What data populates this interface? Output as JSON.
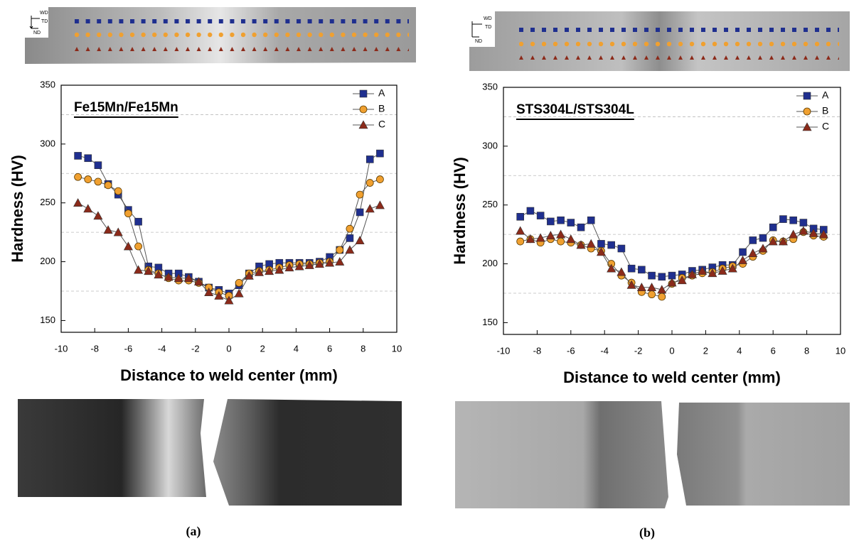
{
  "chart_data": [
    {
      "type": "line",
      "title": "Fe15Mn/Fe15Mn",
      "x_label": "Distance to weld center (mm)",
      "y_label": "Hardness (HV)",
      "x": [
        -9,
        -8.4,
        -7.8,
        -7.2,
        -6.6,
        -6,
        -5.4,
        -4.8,
        -4.2,
        -3.6,
        -3,
        -2.4,
        -1.8,
        -1.2,
        -0.6,
        0,
        0.6,
        1.2,
        1.8,
        2.4,
        3,
        3.6,
        4.2,
        4.8,
        5.4,
        6,
        6.6,
        7.2,
        7.8,
        8.4,
        9
      ],
      "series": [
        {
          "name": "A",
          "color": "#1f2f8f",
          "marker": "square",
          "values": [
            290,
            288,
            282,
            266,
            257,
            244,
            234,
            196,
            195,
            190,
            190,
            187,
            183,
            178,
            176,
            173,
            180,
            190,
            196,
            198,
            199,
            199,
            199,
            199,
            200,
            204,
            210,
            220,
            242,
            287,
            292
          ]
        },
        {
          "name": "B",
          "color": "#f0a030",
          "marker": "circle",
          "values": [
            272,
            270,
            268,
            265,
            260,
            241,
            213,
            193,
            190,
            186,
            184,
            184,
            182,
            178,
            174,
            171,
            182,
            190,
            192,
            193,
            195,
            197,
            198,
            198,
            199,
            200,
            210,
            228,
            257,
            267,
            270
          ]
        },
        {
          "name": "C",
          "color": "#8b2a1a",
          "marker": "triangle",
          "values": [
            250,
            245,
            239,
            227,
            225,
            213,
            193,
            192,
            189,
            187,
            186,
            186,
            183,
            174,
            171,
            167,
            173,
            188,
            191,
            192,
            193,
            195,
            196,
            197,
            198,
            199,
            200,
            210,
            218,
            245,
            248
          ]
        }
      ],
      "xlim": [
        -10,
        10
      ],
      "xticks": [
        -10,
        -8,
        -6,
        -4,
        -2,
        0,
        2,
        4,
        6,
        8,
        10
      ],
      "ylim": [
        140,
        350
      ],
      "yticks": [
        150,
        200,
        250,
        300,
        350
      ],
      "minor_grid": [
        175,
        225,
        275,
        325
      ],
      "legend": "top-right"
    },
    {
      "type": "line",
      "title": "STS304L/STS304L",
      "x_label": "Distance to weld center (mm)",
      "y_label": "Hardness (HV)",
      "x": [
        -9,
        -8.4,
        -7.8,
        -7.2,
        -6.6,
        -6,
        -5.4,
        -4.8,
        -4.2,
        -3.6,
        -3,
        -2.4,
        -1.8,
        -1.2,
        -0.6,
        0,
        0.6,
        1.2,
        1.8,
        2.4,
        3,
        3.6,
        4.2,
        4.8,
        5.4,
        6,
        6.6,
        7.2,
        7.8,
        8.4,
        9
      ],
      "series": [
        {
          "name": "A",
          "color": "#1f2f8f",
          "marker": "square",
          "values": [
            240,
            245,
            241,
            236,
            237,
            235,
            231,
            237,
            217,
            216,
            213,
            196,
            195,
            190,
            189,
            190,
            191,
            194,
            195,
            197,
            199,
            199,
            210,
            220,
            222,
            231,
            238,
            237,
            235,
            230,
            229
          ]
        },
        {
          "name": "B",
          "color": "#f0a030",
          "marker": "circle",
          "values": [
            219,
            221,
            218,
            221,
            219,
            218,
            216,
            213,
            211,
            200,
            190,
            184,
            176,
            174,
            172,
            183,
            188,
            190,
            192,
            193,
            196,
            198,
            200,
            206,
            211,
            220,
            219,
            221,
            227,
            224,
            223
          ]
        },
        {
          "name": "C",
          "color": "#8b2a1a",
          "marker": "triangle",
          "values": [
            228,
            221,
            222,
            224,
            225,
            221,
            216,
            217,
            210,
            196,
            193,
            182,
            180,
            180,
            178,
            184,
            186,
            191,
            194,
            192,
            194,
            196,
            203,
            209,
            213,
            219,
            219,
            225,
            228,
            226,
            225
          ]
        }
      ],
      "xlim": [
        -10,
        10
      ],
      "xticks": [
        -10,
        -8,
        -6,
        -4,
        -2,
        0,
        2,
        4,
        6,
        8,
        10
      ],
      "ylim": [
        140,
        350
      ],
      "yticks": [
        150,
        200,
        250,
        300,
        350
      ],
      "minor_grid": [
        175,
        225,
        275,
        325
      ],
      "legend": "top-right"
    }
  ],
  "panels": [
    {
      "caption": "(a)",
      "orientation": {
        "wd": "WD",
        "td": "TD",
        "nd": "ND"
      }
    },
    {
      "caption": "(b)",
      "orientation": {
        "wd": "WD",
        "td": "TD",
        "nd": "ND"
      }
    }
  ]
}
